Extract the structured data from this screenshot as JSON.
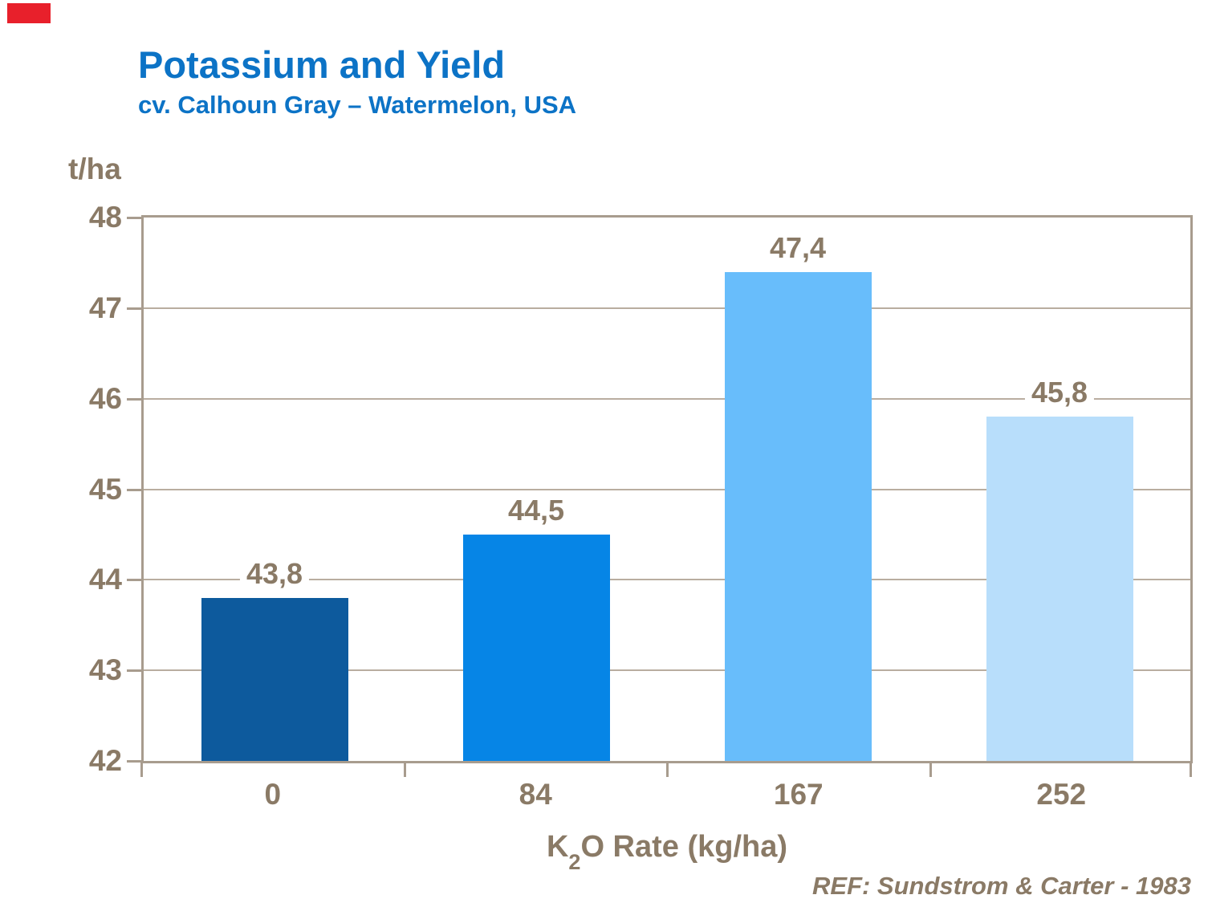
{
  "slide": {
    "title": "Potassium and Yield",
    "subtitle": "cv. Calhoun Gray – Watermelon, USA",
    "ref_note": "REF: Sundstrom & Carter - 1983",
    "logo_color": "#e8202b"
  },
  "chart_data": {
    "type": "bar",
    "title": "Potassium and Yield",
    "subtitle": "cv. Calhoun Gray – Watermelon, USA",
    "unit_label": "t/ha",
    "xlabel_text": "K2O Rate (kg/ha)",
    "xlabel_parts": {
      "base": "K",
      "subscript": "2",
      "rest": "O Rate (kg/ha)"
    },
    "categories": [
      "0",
      "84",
      "167",
      "252"
    ],
    "values": [
      43.8,
      44.5,
      47.4,
      45.8
    ],
    "value_labels": [
      "43,8",
      "44,5",
      "47,4",
      "45,8"
    ],
    "ylim": [
      42,
      48
    ],
    "yticks": [
      42,
      43,
      44,
      45,
      46,
      47,
      48
    ],
    "grid": true,
    "legend": false,
    "bar_colors": [
      "#0d5a9d",
      "#0685e6",
      "#68bdfb",
      "#b8defb"
    ],
    "title_color": "#0c73c6",
    "text_color": "#8a7a66",
    "axis_color": "#a89c8e",
    "grid_color": "#b9ada0"
  }
}
